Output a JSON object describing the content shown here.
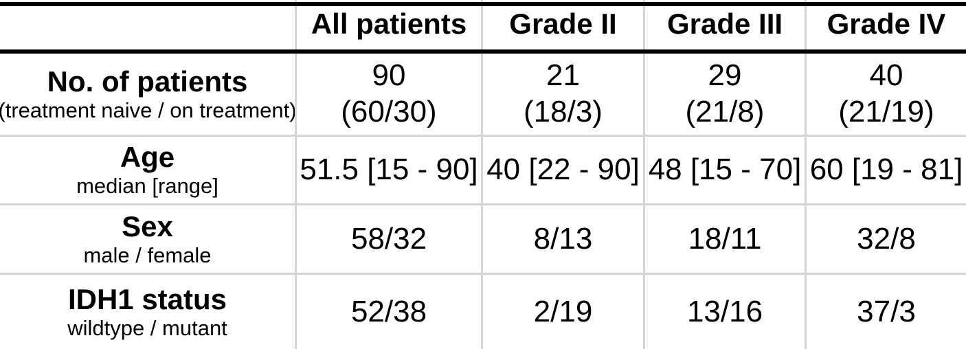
{
  "colors": {
    "heavy_rule": "#000000",
    "grid_line": "#d5d5d5",
    "text": "#000000",
    "background": "#ffffff"
  },
  "table": {
    "header": [
      "",
      "All patients",
      "Grade II",
      "Grade III",
      "Grade IV"
    ],
    "rows": [
      {
        "label": "No. of patients",
        "sublabel": "(treatment naive / on treatment)",
        "values": [
          {
            "line1": "90",
            "line2": "(60/30)"
          },
          {
            "line1": "21",
            "line2": "(18/3)"
          },
          {
            "line1": "29",
            "line2": "(21/8)"
          },
          {
            "line1": "40",
            "line2": "(21/19)"
          }
        ]
      },
      {
        "label": "Age",
        "sublabel": "median [range]",
        "values": [
          "51.5 [15 - 90]",
          "40 [22 - 90]",
          "48 [15 - 70]",
          "60 [19 - 81]"
        ]
      },
      {
        "label": "Sex",
        "sublabel": "male / female",
        "values": [
          "58/32",
          "8/13",
          "18/11",
          "32/8"
        ]
      },
      {
        "label": "IDH1 status",
        "sublabel": "wildtype / mutant",
        "values": [
          "52/38",
          "2/19",
          "13/16",
          "37/3"
        ]
      }
    ]
  }
}
